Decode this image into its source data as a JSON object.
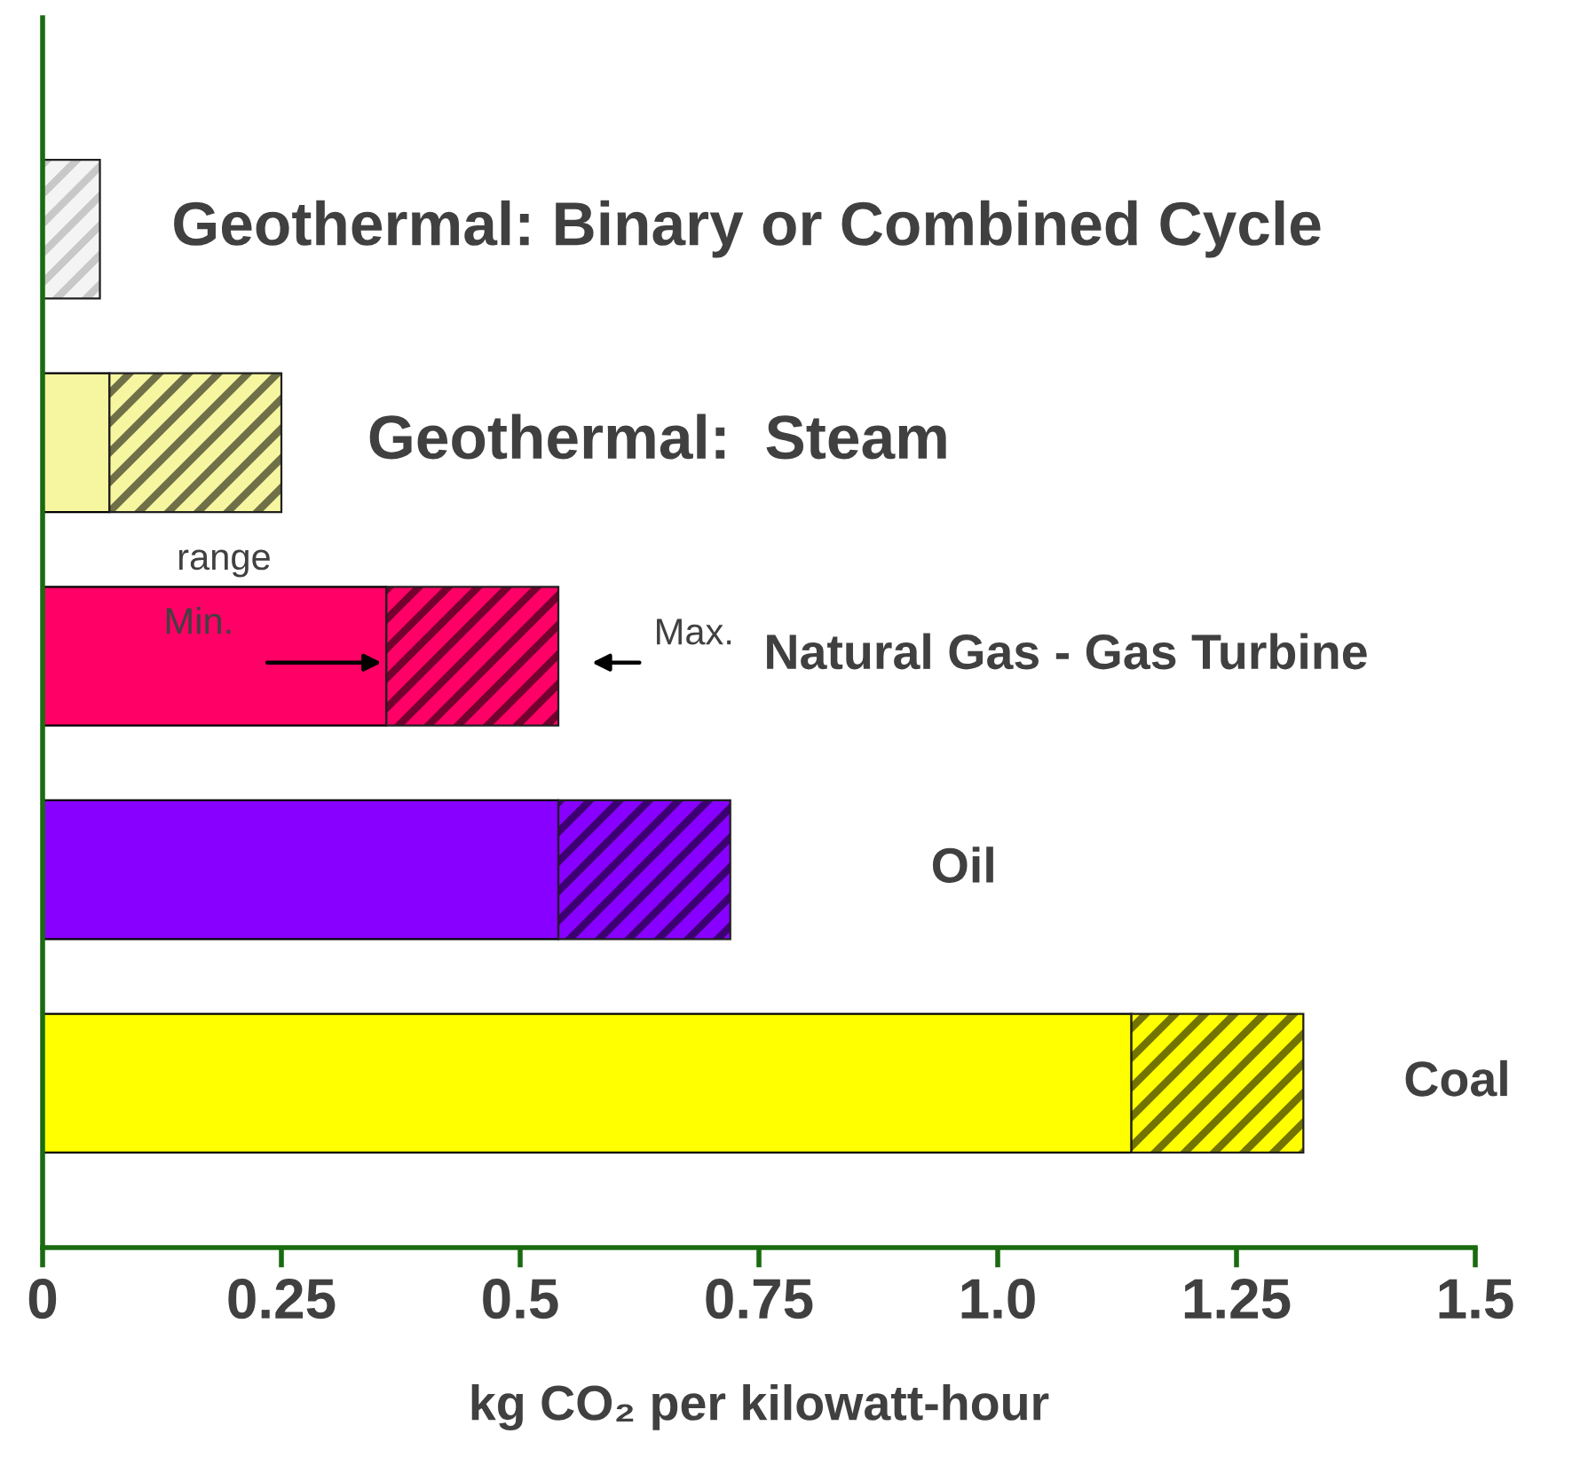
{
  "chart_data": {
    "type": "bar",
    "orientation": "horizontal",
    "stacked": true,
    "categories": [
      "Geothermal: Binary or Combined Cycle",
      "Geothermal:  Steam",
      "Natural Gas - Gas Turbine",
      "Oil",
      "Coal"
    ],
    "series": [
      {
        "colors": [
          "#f4f4f4",
          "#f6f6a0",
          "#ff0066",
          "#8800ff",
          "#ffff00"
        ],
        "values": [
          0,
          0.07,
          0.36,
          0.54,
          1.14
        ]
      },
      {
        "colors": [
          "#f4f4f4",
          "#f6f6a0",
          "#ff0066",
          "#8800ff",
          "#ffff00"
        ],
        "values": [
          0.06,
          0.18,
          0.18,
          0.18,
          0.18
        ]
      }
    ],
    "xlabel": "kg CO₂ per kilowatt-hour",
    "xlim": [
      0,
      1.5
    ],
    "xticks": [
      0,
      0.25,
      0.5,
      0.75,
      {
        "value": 1.0,
        "label": "1.0"
      },
      1.25,
      1.5
    ],
    "annotations": [
      "range",
      "Min.",
      "Max."
    ],
    "grid": false,
    "legend": false
  }
}
